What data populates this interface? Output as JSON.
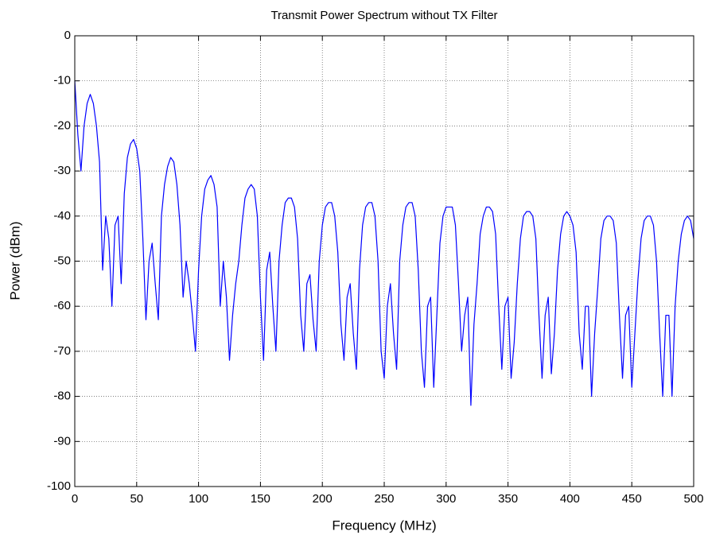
{
  "chart_data": {
    "type": "line",
    "title": "Transmit Power Spectrum without TX Filter",
    "xlabel": "Frequency (MHz)",
    "ylabel": "Power (dBm)",
    "color": "#0000ff",
    "grid": true,
    "xlim": [
      0,
      500
    ],
    "ylim": [
      -100,
      0
    ],
    "xticks": [
      0,
      50,
      100,
      150,
      200,
      250,
      300,
      350,
      400,
      450,
      500
    ],
    "yticks": [
      -100,
      -90,
      -80,
      -70,
      -60,
      -50,
      -40,
      -30,
      -20,
      -10,
      0
    ],
    "x": [
      0,
      2.5,
      5,
      7.5,
      10,
      12.5,
      15,
      17.5,
      20,
      22.5,
      25,
      27.5,
      30,
      32.5,
      35,
      37.5,
      40,
      42.5,
      45,
      47.5,
      50,
      52.5,
      55,
      57.5,
      60,
      62.5,
      65,
      67.5,
      70,
      72.5,
      75,
      77.5,
      80,
      82.5,
      85,
      87.5,
      90,
      92.5,
      95,
      97.5,
      100,
      102.5,
      105,
      107.5,
      110,
      112.5,
      115,
      117.5,
      120,
      122.5,
      125,
      127.5,
      130,
      132.5,
      135,
      137.5,
      140,
      142.5,
      145,
      147.5,
      150,
      152.5,
      155,
      157.5,
      160,
      162.5,
      165,
      167.5,
      170,
      172.5,
      175,
      177.5,
      180,
      182.5,
      185,
      187.5,
      190,
      192.5,
      195,
      197.5,
      200,
      202.5,
      205,
      207.5,
      210,
      212.5,
      215,
      217.5,
      220,
      222.5,
      225,
      227.5,
      230,
      232.5,
      235,
      237.5,
      240,
      242.5,
      245,
      247.5,
      250,
      252.5,
      255,
      257.5,
      260,
      262.5,
      265,
      267.5,
      270,
      272.5,
      275,
      277.5,
      280,
      282.5,
      285,
      287.5,
      290,
      292.5,
      295,
      297.5,
      300,
      302.5,
      305,
      307.5,
      310,
      312.5,
      315,
      317.5,
      320,
      322.5,
      325,
      327.5,
      330,
      332.5,
      335,
      337.5,
      340,
      342.5,
      345,
      347.5,
      350,
      352.5,
      355,
      357.5,
      360,
      362.5,
      365,
      367.5,
      370,
      372.5,
      375,
      377.5,
      380,
      382.5,
      385,
      387.5,
      390,
      392.5,
      395,
      397.5,
      400,
      402.5,
      405,
      407.5,
      410,
      412.5,
      415,
      417.5,
      420,
      422.5,
      425,
      427.5,
      430,
      432.5,
      435,
      437.5,
      440,
      442.5,
      445,
      447.5,
      450,
      452.5,
      455,
      457.5,
      460,
      462.5,
      465,
      467.5,
      470,
      472.5,
      475,
      477.5,
      480,
      482.5,
      485,
      487.5,
      490,
      492.5,
      495,
      497.5,
      500
    ],
    "values": [
      -10,
      -22,
      -30,
      -20,
      -15,
      -13,
      -15,
      -20,
      -28,
      -52,
      -40,
      -45,
      -60,
      -42,
      -40,
      -55,
      -35,
      -27,
      -24,
      -23,
      -25,
      -30,
      -45,
      -63,
      -50,
      -46,
      -55,
      -63,
      -40,
      -33,
      -29,
      -27,
      -28,
      -33,
      -42,
      -58,
      -50,
      -55,
      -62,
      -70,
      -52,
      -40,
      -34,
      -32,
      -31,
      -33,
      -38,
      -60,
      -50,
      -58,
      -72,
      -62,
      -55,
      -50,
      -42,
      -36,
      -34,
      -33,
      -34,
      -40,
      -58,
      -72,
      -52,
      -48,
      -60,
      -70,
      -50,
      -42,
      -37,
      -36,
      -36,
      -38,
      -45,
      -62,
      -70,
      -55,
      -53,
      -63,
      -70,
      -50,
      -42,
      -38,
      -37,
      -37,
      -40,
      -48,
      -64,
      -72,
      -58,
      -55,
      -66,
      -74,
      -52,
      -42,
      -38,
      -37,
      -37,
      -40,
      -50,
      -70,
      -76,
      -60,
      -55,
      -66,
      -74,
      -50,
      -42,
      -38,
      -37,
      -37,
      -40,
      -52,
      -70,
      -78,
      -60,
      -58,
      -78,
      -62,
      -46,
      -40,
      -38,
      -38,
      -38,
      -42,
      -55,
      -70,
      -62,
      -58,
      -82,
      -64,
      -55,
      -44,
      -40,
      -38,
      -38,
      -39,
      -44,
      -60,
      -74,
      -60,
      -58,
      -76,
      -68,
      -55,
      -45,
      -40,
      -39,
      -39,
      -40,
      -45,
      -62,
      -76,
      -62,
      -58,
      -75,
      -66,
      -52,
      -44,
      -40,
      -39,
      -40,
      -42,
      -48,
      -66,
      -74,
      -60,
      -60,
      -80,
      -66,
      -56,
      -45,
      -41,
      -40,
      -40,
      -41,
      -46,
      -62,
      -76,
      -62,
      -60,
      -78,
      -66,
      -54,
      -45,
      -41,
      -40,
      -40,
      -42,
      -50,
      -66,
      -80,
      -62,
      -62,
      -80,
      -60,
      -50,
      -44,
      -41,
      -40,
      -41,
      -45
    ]
  }
}
